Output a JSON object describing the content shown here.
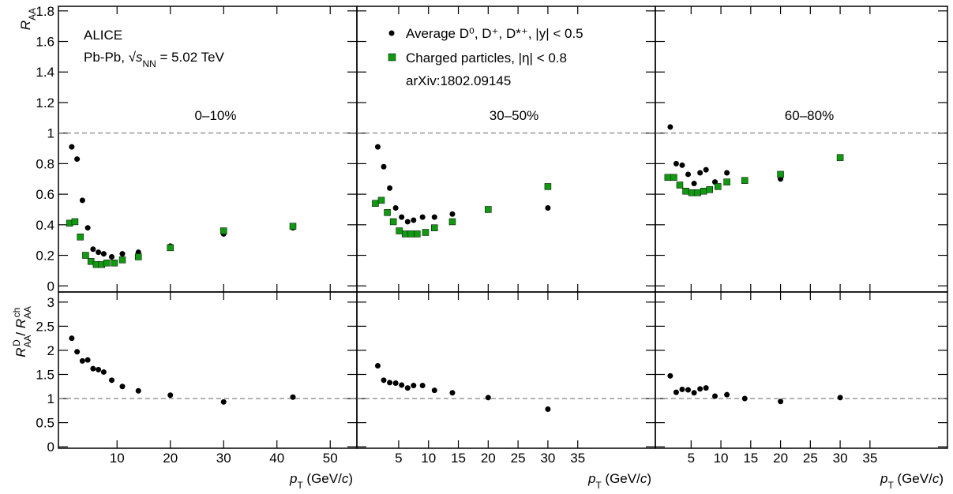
{
  "chart_data": [
    {
      "type": "scatter",
      "panel_label": "0–10%",
      "annotations": [
        "ALICE",
        [
          {
            "t": "Pb-Pb, √"
          },
          {
            "t": "s",
            "italic": true
          },
          {
            "t": "NN",
            "sub": true
          },
          {
            "t": " = 5.02 TeV"
          }
        ]
      ],
      "ylabel": [
        {
          "t": "R",
          "italic": true
        },
        {
          "t": "AA",
          "sub": true
        }
      ],
      "xlim": [
        -1,
        55
      ],
      "ylim": [
        -0.04,
        1.83
      ],
      "xticks": [
        10,
        20,
        30,
        40,
        50
      ],
      "yticks": [
        0,
        0.2,
        0.4,
        0.6,
        0.8,
        1,
        1.2,
        1.4,
        1.6,
        1.8
      ],
      "reference_line": 1,
      "series": [
        {
          "name": "Average D⁰, D⁺, D*⁺, |y| < 0.5",
          "color": "#000000",
          "marker": "circle",
          "x": [
            1.5,
            2.5,
            3.5,
            4.5,
            5.5,
            6.5,
            7.5,
            9,
            11,
            14,
            20,
            30,
            43
          ],
          "values": [
            0.91,
            0.83,
            0.56,
            0.38,
            0.24,
            0.22,
            0.21,
            0.19,
            0.21,
            0.22,
            0.26,
            0.34,
            0.38
          ]
        },
        {
          "name": "Charged particles, |η| < 0.8",
          "color": "#119911",
          "marker": "square",
          "x": [
            1.1,
            2.1,
            3.1,
            4.1,
            5.1,
            6.1,
            7.1,
            8.1,
            9.5,
            11,
            14,
            20,
            30,
            43
          ],
          "values": [
            0.41,
            0.42,
            0.32,
            0.2,
            0.16,
            0.14,
            0.14,
            0.15,
            0.15,
            0.17,
            0.19,
            0.25,
            0.36,
            0.39
          ]
        }
      ]
    },
    {
      "type": "scatter",
      "panel_label": "30–50%",
      "legend": true,
      "note": "arXiv:1802.09145",
      "xlim": [
        -2,
        48
      ],
      "ylim": [
        -0.04,
        1.83
      ],
      "xticks": [
        5,
        10,
        15,
        20,
        25,
        30,
        35
      ],
      "yticks": [
        0,
        0.2,
        0.4,
        0.6,
        0.8,
        1,
        1.2,
        1.4,
        1.6,
        1.8
      ],
      "reference_line": 1,
      "series": [
        {
          "name": "Average D⁰, D⁺, D*⁺, |y| < 0.5",
          "color": "#000000",
          "marker": "circle",
          "x": [
            1.5,
            2.5,
            3.5,
            4.5,
            5.5,
            6.5,
            7.5,
            9,
            11,
            14,
            20,
            30
          ],
          "values": [
            0.91,
            0.78,
            0.64,
            0.51,
            0.45,
            0.42,
            0.43,
            0.45,
            0.45,
            0.47,
            0.5,
            0.51
          ]
        },
        {
          "name": "Charged particles, |η| < 0.8",
          "color": "#119911",
          "marker": "square",
          "x": [
            1.1,
            2.1,
            3.1,
            4.1,
            5.1,
            6.1,
            7.1,
            8.1,
            9.5,
            11,
            14,
            20,
            30
          ],
          "values": [
            0.54,
            0.56,
            0.48,
            0.42,
            0.36,
            0.34,
            0.34,
            0.34,
            0.35,
            0.38,
            0.42,
            0.5,
            0.65
          ]
        }
      ]
    },
    {
      "type": "scatter",
      "panel_label": "60–80%",
      "xlim": [
        -1,
        48
      ],
      "ylim": [
        -0.04,
        1.83
      ],
      "xticks": [
        5,
        10,
        15,
        20,
        25,
        30,
        35
      ],
      "yticks": [
        0,
        0.2,
        0.4,
        0.6,
        0.8,
        1,
        1.2,
        1.4,
        1.6,
        1.8
      ],
      "reference_line": 1,
      "series": [
        {
          "name": "Average D⁰, D⁺, D*⁺, |y| < 0.5",
          "color": "#000000",
          "marker": "circle",
          "x": [
            1.5,
            2.5,
            3.5,
            4.5,
            5.5,
            6.5,
            7.5,
            9,
            11,
            14,
            20,
            30
          ],
          "values": [
            1.04,
            0.8,
            0.79,
            0.73,
            0.67,
            0.74,
            0.76,
            0.68,
            0.74,
            0.69,
            0.7,
            0.84
          ]
        },
        {
          "name": "Charged particles, |η| < 0.8",
          "color": "#119911",
          "marker": "square",
          "x": [
            1.1,
            2.1,
            3.1,
            4.1,
            5.1,
            6.1,
            7.1,
            8.1,
            9.5,
            11,
            14,
            20,
            30
          ],
          "values": [
            0.71,
            0.71,
            0.66,
            0.62,
            0.61,
            0.61,
            0.62,
            0.63,
            0.65,
            0.68,
            0.69,
            0.73,
            0.84
          ]
        }
      ]
    },
    {
      "type": "scatter",
      "ylabel": [
        {
          "t": "R",
          "italic": true
        },
        {
          "t": "AA",
          "sub": true
        },
        {
          "t": "D",
          "sup": true
        },
        {
          "t": " / "
        },
        {
          "t": "R",
          "italic": true
        },
        {
          "t": "AA",
          "sub": true
        },
        {
          "t": "ch",
          "sup": true
        }
      ],
      "xlabel": [
        {
          "t": "p",
          "italic": true
        },
        {
          "t": "T",
          "sub": true
        },
        {
          "t": " (GeV/"
        },
        {
          "t": "c",
          "italic": true
        },
        {
          "t": ")"
        }
      ],
      "xlim": [
        -1,
        55
      ],
      "ylim": [
        -0.03,
        3.21
      ],
      "xticks": [
        10,
        20,
        30,
        40,
        50
      ],
      "yticks": [
        0,
        0.5,
        1,
        1.5,
        2,
        2.5,
        3
      ],
      "reference_line": 1,
      "series": [
        {
          "color": "#000000",
          "marker": "circle",
          "x": [
            1.5,
            2.5,
            3.5,
            4.5,
            5.5,
            6.5,
            7.5,
            9,
            11,
            14,
            20,
            30,
            43
          ],
          "values": [
            2.25,
            1.97,
            1.78,
            1.8,
            1.62,
            1.6,
            1.55,
            1.38,
            1.25,
            1.16,
            1.07,
            0.93,
            1.03
          ]
        }
      ]
    },
    {
      "type": "scatter",
      "xlabel": [
        {
          "t": "p",
          "italic": true
        },
        {
          "t": "T",
          "sub": true
        },
        {
          "t": " (GeV/"
        },
        {
          "t": "c",
          "italic": true
        },
        {
          "t": ")"
        }
      ],
      "xlim": [
        -2,
        48
      ],
      "ylim": [
        -0.03,
        3.21
      ],
      "xticks": [
        5,
        10,
        15,
        20,
        25,
        30,
        35
      ],
      "yticks": [
        0,
        0.5,
        1,
        1.5,
        2,
        2.5,
        3
      ],
      "reference_line": 1,
      "series": [
        {
          "color": "#000000",
          "marker": "circle",
          "x": [
            1.5,
            2.5,
            3.5,
            4.5,
            5.5,
            6.5,
            7.5,
            9,
            11,
            14,
            20,
            30
          ],
          "values": [
            1.68,
            1.38,
            1.33,
            1.32,
            1.28,
            1.22,
            1.27,
            1.27,
            1.17,
            1.12,
            1.02,
            0.78
          ]
        }
      ]
    },
    {
      "type": "scatter",
      "xlabel": [
        {
          "t": "p",
          "italic": true
        },
        {
          "t": "T",
          "sub": true
        },
        {
          "t": " (GeV/"
        },
        {
          "t": "c",
          "italic": true
        },
        {
          "t": ")"
        }
      ],
      "xlim": [
        -1,
        48
      ],
      "ylim": [
        -0.03,
        3.21
      ],
      "xticks": [
        5,
        10,
        15,
        20,
        25,
        30,
        35
      ],
      "yticks": [
        0,
        0.5,
        1,
        1.5,
        2,
        2.5,
        3
      ],
      "reference_line": 1,
      "series": [
        {
          "color": "#000000",
          "marker": "circle",
          "x": [
            1.5,
            2.5,
            3.5,
            4.5,
            5.5,
            6.5,
            7.5,
            9,
            11,
            14,
            20,
            30
          ],
          "values": [
            1.47,
            1.13,
            1.19,
            1.18,
            1.12,
            1.2,
            1.22,
            1.05,
            1.08,
            1.0,
            0.94,
            1.02
          ]
        }
      ]
    }
  ]
}
